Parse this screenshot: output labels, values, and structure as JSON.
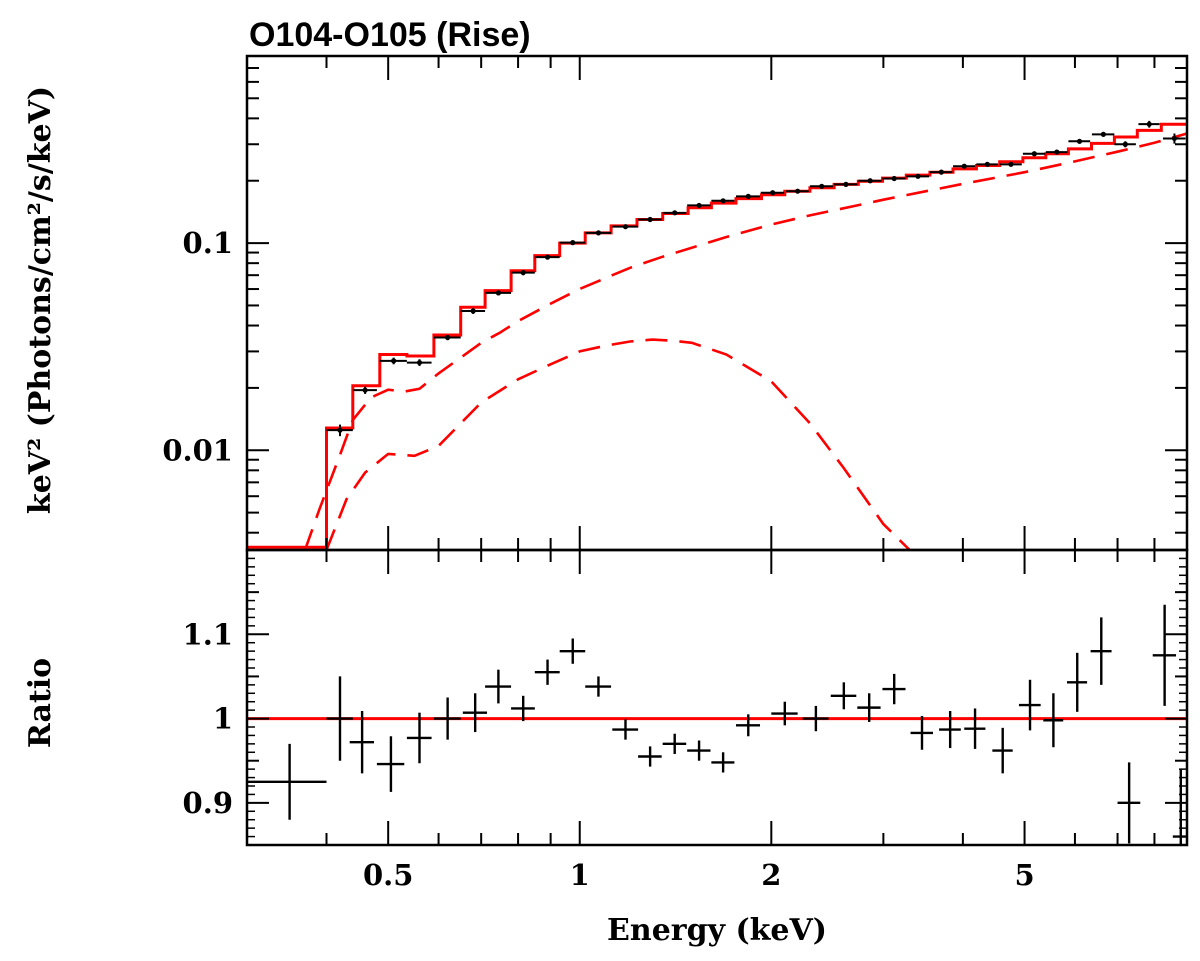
{
  "chart_data": [
    {
      "type": "line",
      "panel": "spectrum",
      "title": "O104-O105 (Rise)",
      "xlabel": "Energy (keV)",
      "ylabel": "keV² (Photons/cm²/s/keV)",
      "x_scale": "log",
      "y_scale": "log",
      "xlim": [
        0.3,
        9.0
      ],
      "ylim": [
        0.0033,
        0.8
      ],
      "y_tick_labels": [
        "0.1",
        "0.01"
      ],
      "y_tick_values": [
        0.1,
        0.01
      ],
      "data_points": {
        "name": "data",
        "color": "#000000",
        "x": [
          0.42,
          0.46,
          0.51,
          0.56,
          0.62,
          0.68,
          0.745,
          0.815,
          0.89,
          0.975,
          1.07,
          1.18,
          1.29,
          1.41,
          1.54,
          1.68,
          1.84,
          2.01,
          2.2,
          2.4,
          2.62,
          2.86,
          3.12,
          3.4,
          3.7,
          4.02,
          4.37,
          4.76,
          5.18,
          5.62,
          6.1,
          6.65,
          7.2,
          7.85,
          8.6
        ],
        "xerr": [
          0.02,
          0.02,
          0.025,
          0.025,
          0.03,
          0.03,
          0.035,
          0.035,
          0.04,
          0.045,
          0.05,
          0.055,
          0.055,
          0.06,
          0.065,
          0.07,
          0.08,
          0.085,
          0.09,
          0.1,
          0.11,
          0.12,
          0.13,
          0.14,
          0.15,
          0.16,
          0.17,
          0.19,
          0.21,
          0.22,
          0.24,
          0.27,
          0.28,
          0.3,
          0.35
        ],
        "y": [
          0.0125,
          0.0195,
          0.027,
          0.0265,
          0.035,
          0.047,
          0.0575,
          0.072,
          0.0855,
          0.1005,
          0.112,
          0.12,
          0.13,
          0.14,
          0.152,
          0.16,
          0.168,
          0.175,
          0.178,
          0.188,
          0.192,
          0.2,
          0.205,
          0.21,
          0.22,
          0.235,
          0.24,
          0.24,
          0.27,
          0.275,
          0.31,
          0.335,
          0.3,
          0.375,
          0.32
        ],
        "yerr": [
          0.0008,
          0.0008,
          0.001,
          0.001,
          0.001,
          0.0015,
          0.0015,
          0.002,
          0.002,
          0.002,
          0.002,
          0.002,
          0.002,
          0.002,
          0.002,
          0.002,
          0.002,
          0.002,
          0.003,
          0.003,
          0.003,
          0.003,
          0.003,
          0.003,
          0.003,
          0.004,
          0.004,
          0.005,
          0.006,
          0.006,
          0.008,
          0.009,
          0.01,
          0.014,
          0.018
        ]
      },
      "model_total": {
        "name": "total model (histogram)",
        "color": "#ff0000",
        "bin_edges": [
          0.3,
          0.4,
          0.44,
          0.485,
          0.535,
          0.59,
          0.65,
          0.71,
          0.78,
          0.85,
          0.93,
          1.02,
          1.12,
          1.23,
          1.35,
          1.48,
          1.61,
          1.76,
          1.93,
          2.1,
          2.3,
          2.51,
          2.74,
          2.99,
          3.26,
          3.55,
          3.86,
          4.2,
          4.57,
          4.97,
          5.4,
          5.86,
          6.37,
          6.92,
          7.52,
          8.2,
          9.0
        ],
        "values": [
          0.0034,
          0.0128,
          0.0205,
          0.029,
          0.0285,
          0.036,
          0.049,
          0.059,
          0.0735,
          0.087,
          0.1,
          0.112,
          0.121,
          0.13,
          0.139,
          0.148,
          0.156,
          0.164,
          0.171,
          0.178,
          0.185,
          0.192,
          0.199,
          0.206,
          0.213,
          0.22,
          0.228,
          0.237,
          0.247,
          0.258,
          0.27,
          0.285,
          0.303,
          0.325,
          0.35,
          0.375
        ]
      },
      "components": [
        {
          "name": "component 1",
          "color": "#ff0000",
          "style": "dashed",
          "x": [
            0.37,
            0.39,
            0.42,
            0.44,
            0.47,
            0.5,
            0.53,
            0.56,
            0.6,
            0.65,
            0.7,
            0.75,
            0.8,
            0.9,
            1.0,
            1.1,
            1.2,
            1.35,
            1.5,
            1.7,
            2.0,
            2.3,
            2.7,
            3.0,
            3.5,
            4.0,
            5.0,
            6.0,
            7.0,
            8.0,
            9.0
          ],
          "y": [
            0.0033,
            0.0052,
            0.0095,
            0.014,
            0.018,
            0.0196,
            0.0192,
            0.0198,
            0.0235,
            0.028,
            0.033,
            0.037,
            0.042,
            0.051,
            0.06,
            0.068,
            0.076,
            0.086,
            0.095,
            0.107,
            0.123,
            0.136,
            0.151,
            0.162,
            0.178,
            0.193,
            0.22,
            0.248,
            0.276,
            0.305,
            0.338
          ]
        },
        {
          "name": "component 2",
          "color": "#ff0000",
          "style": "dashed",
          "x": [
            0.4,
            0.43,
            0.46,
            0.5,
            0.55,
            0.6,
            0.7,
            0.8,
            0.9,
            1.0,
            1.1,
            1.2,
            1.3,
            1.4,
            1.5,
            1.7,
            2.0,
            2.3,
            2.6,
            3.0,
            3.3
          ],
          "y": [
            0.0033,
            0.0058,
            0.0078,
            0.0096,
            0.0094,
            0.0105,
            0.017,
            0.022,
            0.026,
            0.03,
            0.032,
            0.0335,
            0.0342,
            0.0338,
            0.033,
            0.029,
            0.0215,
            0.0135,
            0.0082,
            0.0044,
            0.0033
          ]
        }
      ]
    },
    {
      "type": "scatter",
      "panel": "ratio",
      "xlabel": "Energy (keV)",
      "ylabel": "Ratio",
      "x_scale": "log",
      "xlim": [
        0.3,
        9.0
      ],
      "ylim": [
        0.85,
        1.2
      ],
      "x_tick_labels": [
        "0.5",
        "1",
        "2",
        "5"
      ],
      "x_tick_values": [
        0.5,
        1,
        2,
        5
      ],
      "y_tick_labels": [
        "1.1",
        "1",
        "0.9"
      ],
      "y_tick_values": [
        1.1,
        1.0,
        0.9
      ],
      "reference_line": {
        "y": 1.0,
        "color": "#ff0000"
      },
      "data_points": {
        "name": "ratio",
        "color": "#000000",
        "x": [
          0.35,
          0.42,
          0.455,
          0.505,
          0.56,
          0.62,
          0.685,
          0.745,
          0.815,
          0.89,
          0.975,
          1.07,
          1.18,
          1.29,
          1.41,
          1.54,
          1.68,
          1.84,
          2.1,
          2.35,
          2.6,
          2.85,
          3.12,
          3.45,
          3.82,
          4.18,
          4.62,
          5.1,
          5.55,
          6.05,
          6.6,
          7.3,
          8.3,
          8.8
        ],
        "xerr": [
          0.05,
          0.02,
          0.02,
          0.025,
          0.025,
          0.03,
          0.03,
          0.035,
          0.035,
          0.04,
          0.045,
          0.05,
          0.055,
          0.055,
          0.06,
          0.065,
          0.07,
          0.08,
          0.1,
          0.11,
          0.12,
          0.12,
          0.13,
          0.14,
          0.15,
          0.16,
          0.17,
          0.2,
          0.2,
          0.22,
          0.25,
          0.3,
          0.35,
          0.25
        ],
        "y": [
          0.925,
          1.0,
          0.972,
          0.946,
          0.977,
          1.0,
          1.007,
          1.038,
          1.012,
          1.055,
          1.08,
          1.038,
          0.987,
          0.955,
          0.97,
          0.962,
          0.948,
          0.992,
          1.006,
          1.0,
          1.027,
          1.013,
          1.035,
          0.983,
          0.987,
          0.988,
          0.962,
          1.016,
          0.998,
          1.043,
          1.08,
          0.9,
          1.075,
          0.86
        ],
        "yerr": [
          0.045,
          0.05,
          0.037,
          0.033,
          0.03,
          0.025,
          0.023,
          0.02,
          0.015,
          0.015,
          0.015,
          0.012,
          0.012,
          0.012,
          0.012,
          0.012,
          0.012,
          0.013,
          0.014,
          0.015,
          0.016,
          0.017,
          0.018,
          0.02,
          0.022,
          0.024,
          0.027,
          0.03,
          0.032,
          0.035,
          0.04,
          0.048,
          0.06,
          0.08
        ]
      }
    }
  ]
}
